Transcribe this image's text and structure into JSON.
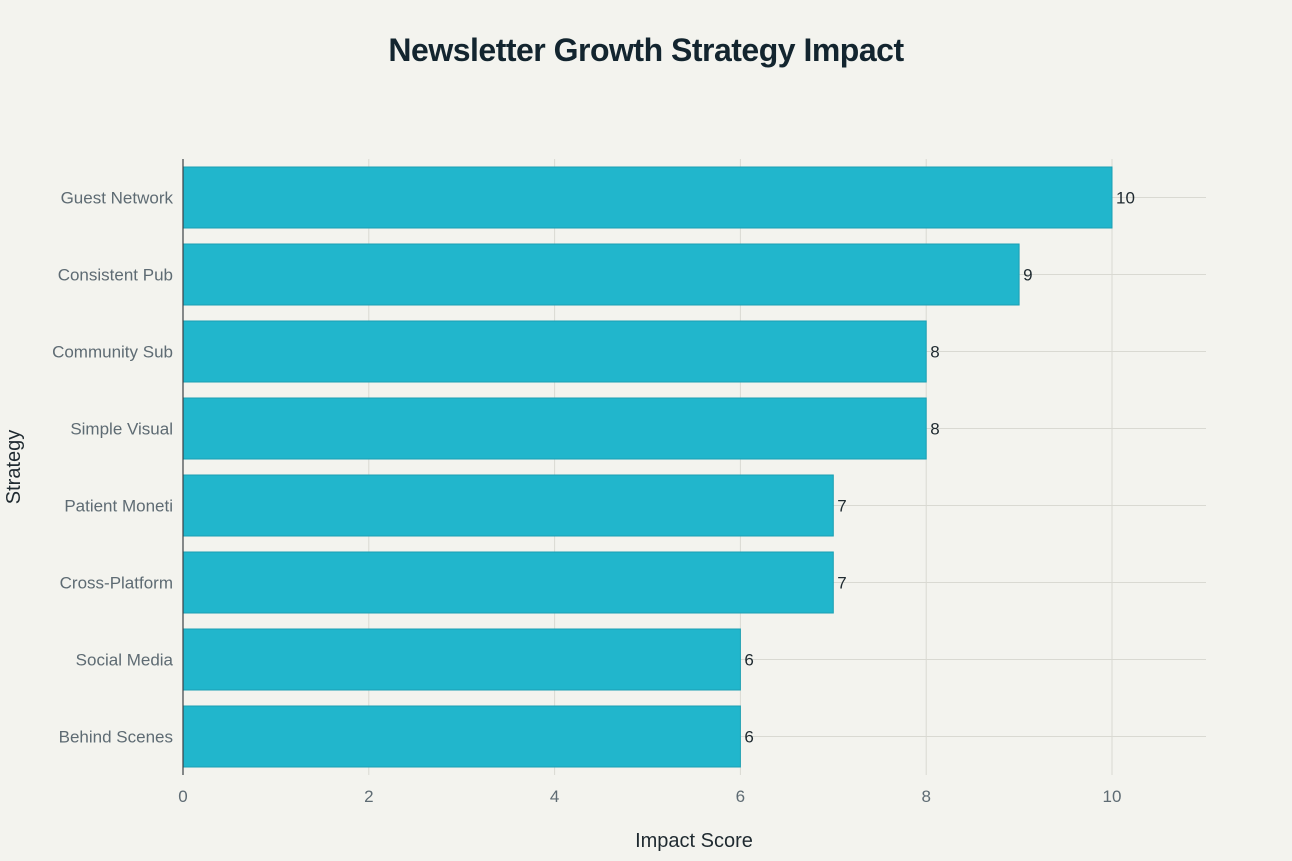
{
  "chart_data": {
    "type": "bar",
    "orientation": "horizontal",
    "title": "Newsletter Growth Strategy Impact",
    "xlabel": "Impact Score",
    "ylabel": "Strategy",
    "categories": [
      "Guest Network",
      "Consistent Pub",
      "Community Sub",
      "Simple Visual",
      "Patient Moneti",
      "Cross-Platform",
      "Social Media",
      "Behind Scenes"
    ],
    "values": [
      10,
      9,
      8,
      8,
      7,
      7,
      6,
      6
    ],
    "xlim": [
      0,
      11
    ],
    "xticks": [
      0,
      2,
      4,
      6,
      8,
      10
    ],
    "grid": true,
    "data_labels": true,
    "colors": {
      "bar": "#21b6cc",
      "bar_edge": "#1a9fb3",
      "background": "#f3f3ee",
      "grid": "#d9d9d2"
    }
  }
}
